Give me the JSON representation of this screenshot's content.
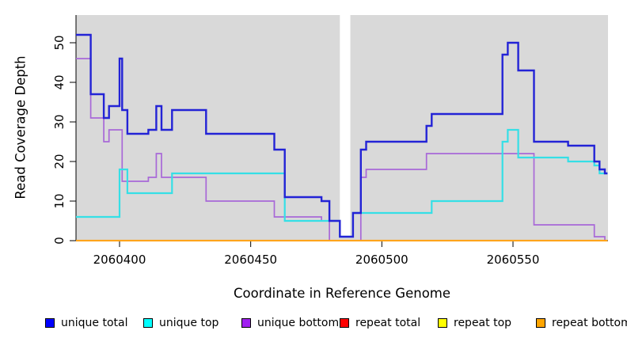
{
  "chart_data": {
    "type": "line",
    "style": "step-after",
    "title": "",
    "xlabel": "Coordinate in Reference Genome",
    "ylabel": "Read Coverage Depth",
    "xlim": [
      2060383,
      2060586
    ],
    "ylim": [
      0,
      52
    ],
    "x_ticks": [
      2060400,
      2060450,
      2060500,
      2060550
    ],
    "y_ticks": [
      0,
      10,
      20,
      30,
      40,
      50
    ],
    "grid": false,
    "background": "#d9d9d9",
    "gap_region": {
      "x_start": 2060484,
      "x_end": 2060488
    },
    "draw_order": [
      3,
      4,
      2,
      1,
      0,
      5
    ],
    "series": [
      {
        "name": "unique total",
        "color": "#2323d6",
        "width": 2.4,
        "points": [
          [
            2060383,
            52
          ],
          [
            2060389,
            37
          ],
          [
            2060394,
            31
          ],
          [
            2060396,
            34
          ],
          [
            2060400,
            46
          ],
          [
            2060401,
            33
          ],
          [
            2060403,
            27
          ],
          [
            2060411,
            28
          ],
          [
            2060414,
            34
          ],
          [
            2060416,
            28
          ],
          [
            2060420,
            33
          ],
          [
            2060433,
            27
          ],
          [
            2060459,
            23
          ],
          [
            2060463,
            11
          ],
          [
            2060477,
            10
          ],
          [
            2060480,
            5
          ],
          [
            2060484,
            1
          ],
          [
            2060489,
            7
          ],
          [
            2060492,
            23
          ],
          [
            2060494,
            25
          ],
          [
            2060517,
            29
          ],
          [
            2060519,
            32
          ],
          [
            2060546,
            47
          ],
          [
            2060548,
            50
          ],
          [
            2060552,
            43
          ],
          [
            2060558,
            25
          ],
          [
            2060571,
            24
          ],
          [
            2060581,
            20
          ],
          [
            2060583,
            18
          ],
          [
            2060585,
            17
          ]
        ]
      },
      {
        "name": "unique top",
        "color": "#35dfe6",
        "width": 2.2,
        "points": [
          [
            2060383,
            6
          ],
          [
            2060400,
            18
          ],
          [
            2060403,
            12
          ],
          [
            2060420,
            17
          ],
          [
            2060463,
            5
          ],
          [
            2060484,
            1
          ],
          [
            2060489,
            7
          ],
          [
            2060519,
            10
          ],
          [
            2060546,
            25
          ],
          [
            2060548,
            28
          ],
          [
            2060552,
            21
          ],
          [
            2060571,
            20
          ],
          [
            2060581,
            19
          ],
          [
            2060583,
            17
          ]
        ]
      },
      {
        "name": "unique bottom",
        "color": "#a868d8",
        "width": 1.7,
        "points": [
          [
            2060383,
            46
          ],
          [
            2060389,
            31
          ],
          [
            2060394,
            25
          ],
          [
            2060396,
            28
          ],
          [
            2060401,
            15
          ],
          [
            2060411,
            16
          ],
          [
            2060414,
            22
          ],
          [
            2060416,
            16
          ],
          [
            2060433,
            10
          ],
          [
            2060459,
            6
          ],
          [
            2060477,
            5
          ],
          [
            2060480,
            0
          ],
          [
            2060492,
            16
          ],
          [
            2060494,
            18
          ],
          [
            2060517,
            22
          ],
          [
            2060558,
            4
          ],
          [
            2060581,
            1
          ],
          [
            2060585,
            0
          ]
        ]
      },
      {
        "name": "repeat total",
        "color": "#ff0000",
        "width": 1.6,
        "points": [
          [
            2060383,
            0
          ]
        ]
      },
      {
        "name": "repeat top",
        "color": "#ffff00",
        "width": 1.6,
        "points": [
          [
            2060383,
            0
          ]
        ]
      },
      {
        "name": "repeat bottom",
        "color": "#ffa41b",
        "width": 2.2,
        "points": [
          [
            2060383,
            0
          ]
        ]
      }
    ]
  },
  "legend": {
    "items": [
      {
        "label": "unique total",
        "color": "#0000ff"
      },
      {
        "label": "unique top",
        "color": "#00ffff"
      },
      {
        "label": "unique bottom",
        "color": "#a020f0"
      },
      {
        "label": "repeat total",
        "color": "#ff0000"
      },
      {
        "label": "repeat top",
        "color": "#ffff00"
      },
      {
        "label": "repeat bottom",
        "color": "#ffa500"
      }
    ]
  }
}
